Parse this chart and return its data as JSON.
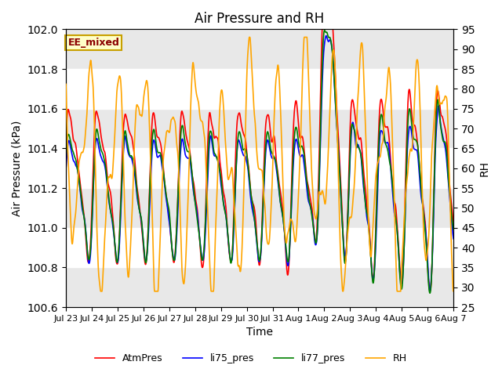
{
  "title": "Air Pressure and RH",
  "xlabel": "Time",
  "ylabel_left": "Air Pressure (kPa)",
  "ylabel_right": "RH",
  "ylim_left": [
    100.6,
    102.0
  ],
  "ylim_right": [
    25,
    95
  ],
  "yticks_left": [
    100.6,
    100.8,
    101.0,
    101.2,
    101.4,
    101.6,
    101.8,
    102.0
  ],
  "yticks_right": [
    25,
    30,
    35,
    40,
    45,
    50,
    55,
    60,
    65,
    70,
    75,
    80,
    85,
    90,
    95
  ],
  "xticklabels": [
    "Jul 23",
    "Jul 24",
    "Jul 25",
    "Jul 26",
    "Jul 27",
    "Jul 28",
    "Jul 29",
    "Jul 30",
    "Jul 31",
    "Aug 1",
    "Aug 2",
    "Aug 3",
    "Aug 4",
    "Aug 5",
    "Aug 6",
    "Aug 7"
  ],
  "legend_labels": [
    "AtmPres",
    "li75_pres",
    "li77_pres",
    "RH"
  ],
  "colors": [
    "red",
    "blue",
    "green",
    "orange"
  ],
  "annotation_text": "EE_mixed",
  "annotation_color": "#8B0000",
  "annotation_bg": "#FFFFC8",
  "annotation_border": "#C8A000",
  "bg_white": "#FFFFFF",
  "bg_gray": "#E8E8E8",
  "linewidth": 1.2,
  "title_fontsize": 12,
  "axis_fontsize": 10,
  "tick_fontsize": 8
}
